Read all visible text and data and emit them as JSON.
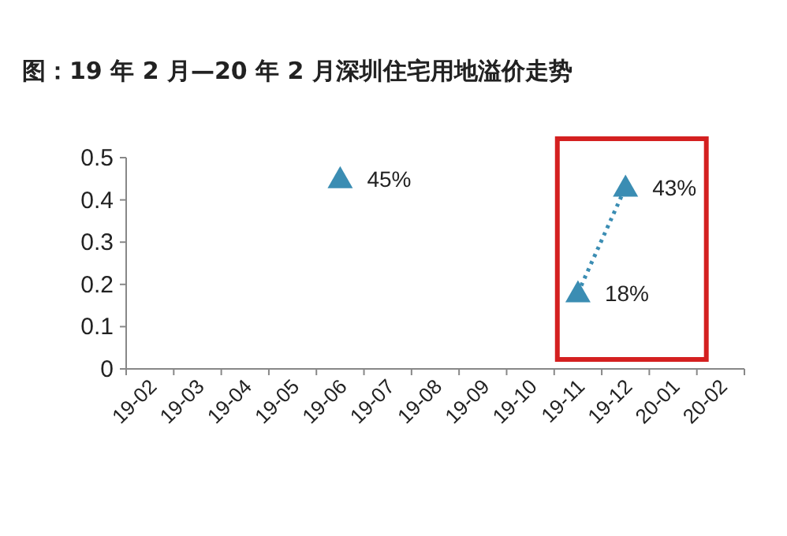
{
  "chart_data": {
    "type": "line",
    "title": "图：19 年 2 月—20 年 2 月深圳住宅用地溢价走势",
    "categories": [
      "19-02",
      "19-03",
      "19-04",
      "19-05",
      "19-06",
      "19-07",
      "19-08",
      "19-09",
      "19-10",
      "19-11",
      "19-12",
      "20-01",
      "20-02"
    ],
    "series": [
      {
        "color": "#3b8db3",
        "values": [
          null,
          null,
          null,
          null,
          0.45,
          null,
          null,
          null,
          null,
          0.18,
          0.43,
          null,
          null
        ],
        "value_labels": [
          null,
          null,
          null,
          null,
          "45%",
          null,
          null,
          null,
          null,
          "18%",
          "43%",
          null,
          null
        ]
      }
    ],
    "ylim": [
      0,
      0.5
    ],
    "yticks": [
      0,
      0.1,
      0.2,
      0.3,
      0.4,
      0.5
    ],
    "marker": "triangle",
    "line_style": "dotted"
  }
}
